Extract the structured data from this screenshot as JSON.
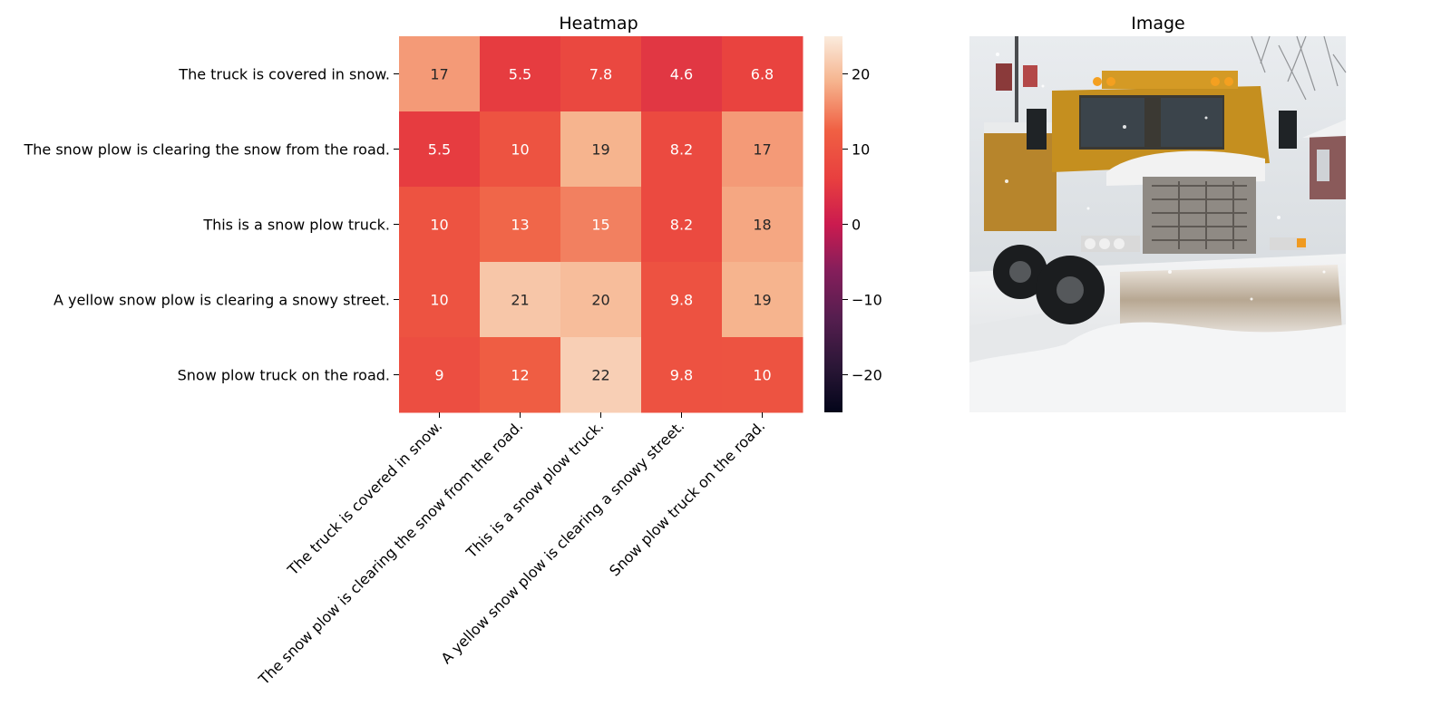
{
  "chart_data": [
    {
      "type": "heatmap",
      "title": "Heatmap",
      "rows": [
        "The truck is covered in snow.",
        "The snow plow is clearing the snow from the road.",
        "This is a snow plow truck.",
        "A yellow snow plow is clearing a snowy street.",
        "Snow plow truck on the road."
      ],
      "columns": [
        "The truck is covered in snow.",
        "The snow plow is clearing the snow from the road.",
        "This is a snow plow truck.",
        "A yellow snow plow is clearing a snowy street.",
        "Snow plow truck on the road."
      ],
      "values": [
        [
          17,
          5.5,
          7.8,
          4.6,
          6.8
        ],
        [
          5.5,
          10,
          19,
          8.2,
          17
        ],
        [
          10,
          13,
          15,
          8.2,
          18
        ],
        [
          10,
          21,
          20,
          9.8,
          19
        ],
        [
          9,
          12,
          22,
          9.8,
          10
        ]
      ],
      "cell_labels": [
        [
          "17",
          "5.5",
          "7.8",
          "4.6",
          "6.8"
        ],
        [
          "5.5",
          "10",
          "19",
          "8.2",
          "17"
        ],
        [
          "10",
          "13",
          "15",
          "8.2",
          "18"
        ],
        [
          "10",
          "21",
          "20",
          "9.8",
          "19"
        ],
        [
          "9",
          "12",
          "22",
          "9.8",
          "10"
        ]
      ],
      "colorbar": {
        "vmin": -25,
        "vmax": 25,
        "ticks": [
          20,
          10,
          0,
          -10,
          -20
        ],
        "tick_labels": [
          "20",
          "10",
          "0",
          "−10",
          "−20"
        ],
        "colormap": "rocket"
      }
    }
  ],
  "image_panel": {
    "title": "Image",
    "description_icon": "snow-plow-truck-photo"
  }
}
